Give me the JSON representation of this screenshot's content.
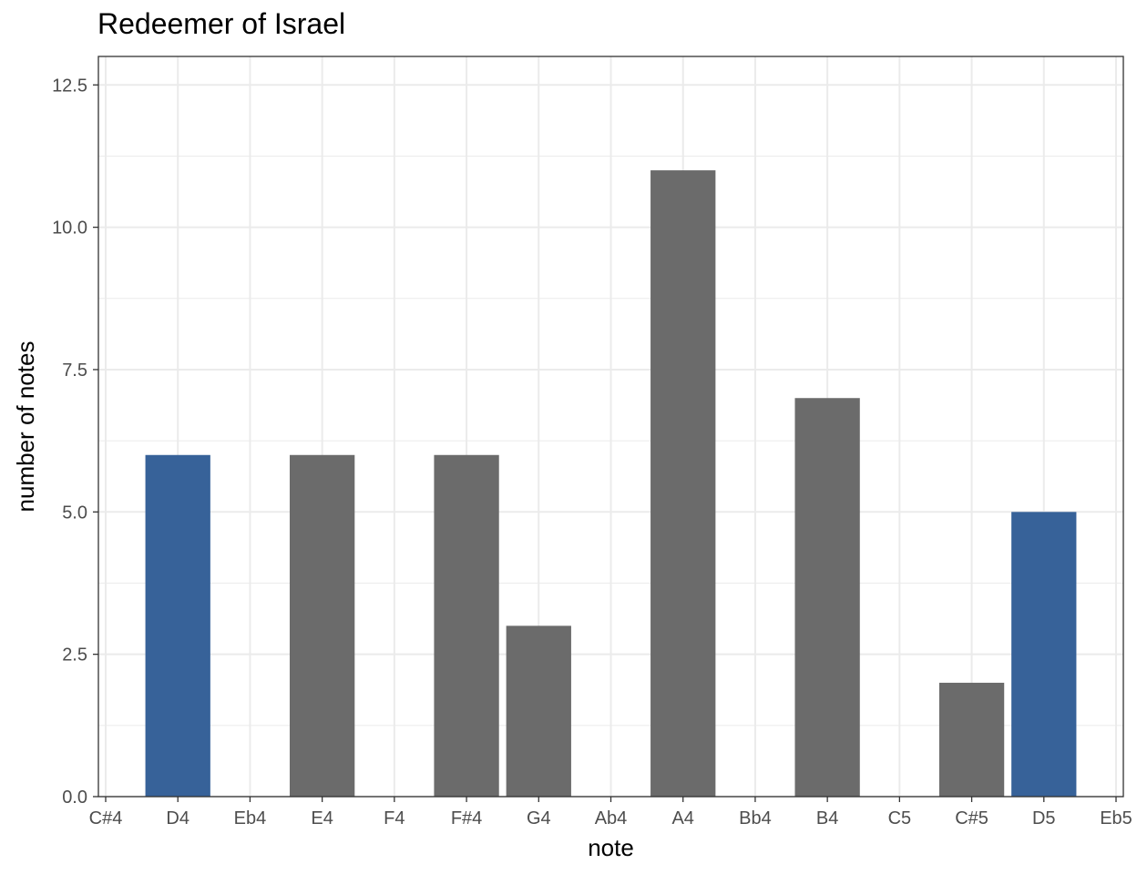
{
  "chart_data": {
    "type": "bar",
    "title": "Redeemer of Israel",
    "xlabel": "note",
    "ylabel": "number of notes",
    "categories": [
      "C#4",
      "D4",
      "Eb4",
      "E4",
      "F4",
      "F#4",
      "G4",
      "Ab4",
      "A4",
      "Bb4",
      "B4",
      "C5",
      "C#5",
      "D5",
      "Eb5"
    ],
    "values": [
      null,
      6,
      null,
      6,
      null,
      6,
      3,
      null,
      11,
      null,
      7,
      null,
      2,
      5,
      null
    ],
    "highlight": [
      false,
      true,
      false,
      false,
      false,
      false,
      false,
      false,
      false,
      false,
      false,
      false,
      false,
      true,
      false
    ],
    "ylim": [
      0,
      12.5
    ],
    "yticks": [
      "0.0",
      "2.5",
      "5.0",
      "7.5",
      "10.0",
      "12.5"
    ],
    "grid": true,
    "colors": {
      "default_bar": "#6b6b6b",
      "highlight_bar": "#376299",
      "grid": "#ebebeb",
      "panel_border": "#333333"
    }
  }
}
